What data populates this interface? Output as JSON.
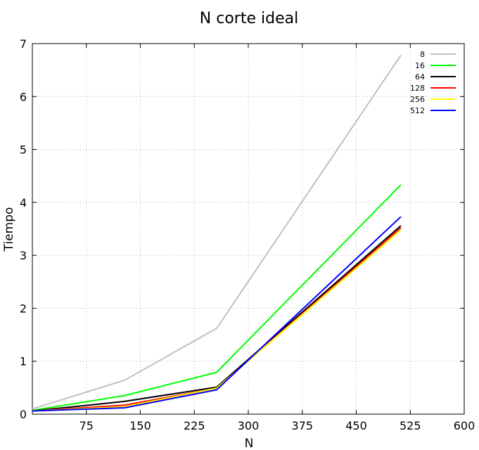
{
  "chart_data": {
    "type": "line",
    "title": "N corte ideal",
    "xlabel": "N",
    "ylabel": "Tiempo",
    "xlim": [
      0,
      600
    ],
    "ylim": [
      0,
      7
    ],
    "x_ticks": [
      75,
      150,
      225,
      300,
      375,
      450,
      525,
      600
    ],
    "y_ticks": [
      0,
      1,
      2,
      3,
      4,
      5,
      6,
      7
    ],
    "x_tick_labels": [
      "75",
      "150",
      "225",
      "300",
      "375",
      "450",
      "525",
      "600"
    ],
    "y_tick_labels": [
      "0",
      "1",
      "2",
      "3",
      "4",
      "5",
      "6",
      "7"
    ],
    "grid": true,
    "legend_position": "top-right",
    "x": [
      0,
      128,
      256,
      512
    ],
    "series": [
      {
        "name": "8",
        "color": "#c0c0c0",
        "values": [
          0.1,
          0.64,
          1.62,
          6.78
        ]
      },
      {
        "name": "16",
        "color": "#00ff00",
        "values": [
          0.07,
          0.35,
          0.79,
          4.33
        ]
      },
      {
        "name": "64",
        "color": "#000000",
        "values": [
          0.06,
          0.24,
          0.51,
          3.56
        ]
      },
      {
        "name": "128",
        "color": "#ff0000",
        "values": [
          0.06,
          0.17,
          0.49,
          3.52
        ]
      },
      {
        "name": "256",
        "color": "#ffff00",
        "values": [
          0.06,
          0.14,
          0.49,
          3.48
        ]
      },
      {
        "name": "512",
        "color": "#0000ff",
        "values": [
          0.06,
          0.12,
          0.46,
          3.73
        ]
      }
    ]
  }
}
